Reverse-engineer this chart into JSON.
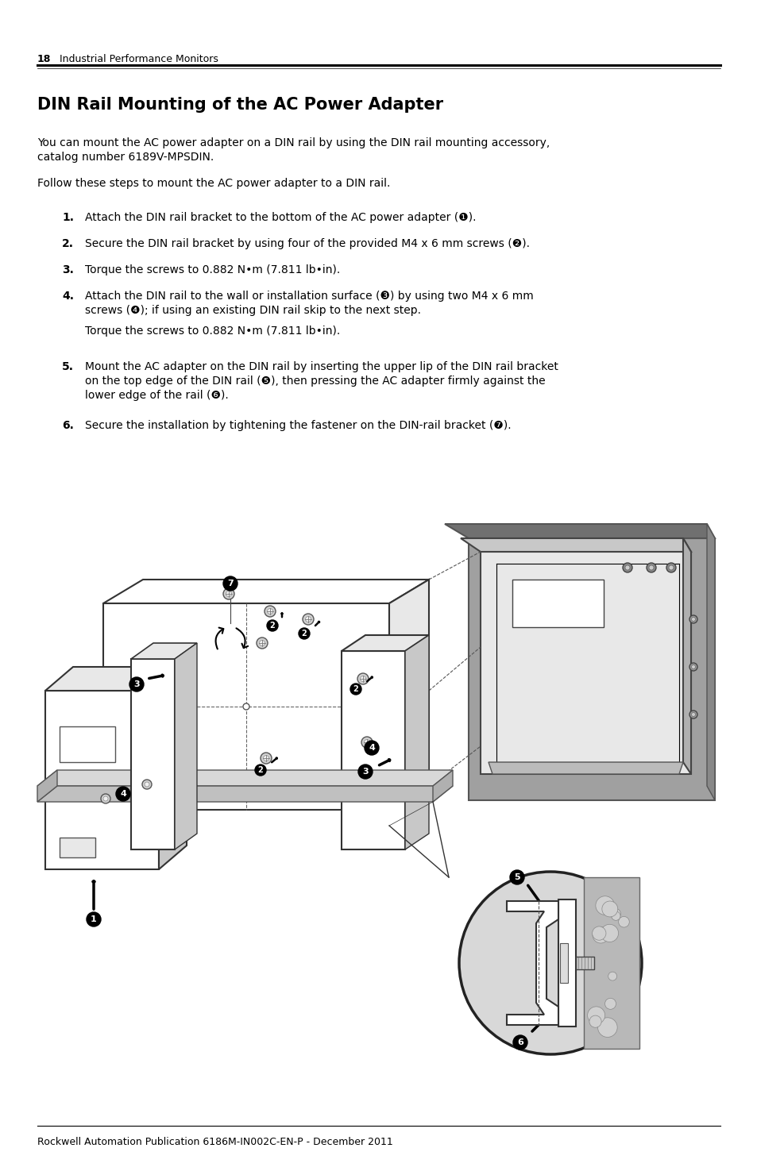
{
  "page_number": "18",
  "header_text": "Industrial Performance Monitors",
  "title": "DIN Rail Mounting of the AC Power Adapter",
  "footer_text": "Rockwell Automation Publication 6186M-IN002C-EN-P - December 2011",
  "bg_color": "#ffffff",
  "text_color": "#000000",
  "para1_line1": "You can mount the AC power adapter on a DIN rail by using the DIN rail mounting accessory,",
  "para1_line2": "catalog number 6189V-MPSDIN.",
  "para2": "Follow these steps to mount the AC power adapter to a DIN rail.",
  "step1_num": "1.",
  "step1_text": "Attach the DIN rail bracket to the bottom of the AC power adapter (❶).",
  "step2_num": "2.",
  "step2_text": "Secure the DIN rail bracket by using four of the provided M4 x 6 mm screws (❷).",
  "step3_num": "3.",
  "step3_text": "Torque the screws to 0.882 N•m (7.811 lb•in).",
  "step4_num": "4.",
  "step4_line1": "Attach the DIN rail to the wall or installation surface (❸) by using two M4 x 6 mm",
  "step4_line2": "screws (❹); if using an existing DIN rail skip to the next step.",
  "step4_sub": "Torque the screws to 0.882 N•m (7.811 lb•in).",
  "step5_num": "5.",
  "step5_line1": "Mount the AC adapter on the DIN rail by inserting the upper lip of the DIN rail bracket",
  "step5_line2": "on the top edge of the DIN rail (❺), then pressing the AC adapter firmly against the",
  "step5_line3": "lower edge of the rail (❻).",
  "step6_num": "6.",
  "step6_text": "Secure the installation by tightening the fastener on the DIN-rail bracket (❼)."
}
